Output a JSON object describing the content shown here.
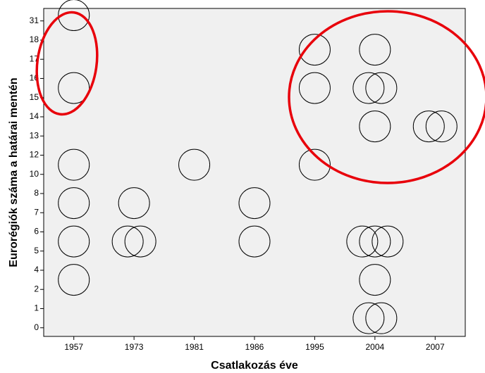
{
  "chart_data": {
    "type": "scatter",
    "x_label": "Csatlakozás éve",
    "y_label": "Eurorégiók száma a határai mentén",
    "categories": [
      "1957",
      "1973",
      "1981",
      "1986",
      "1995",
      "2004",
      "2007"
    ],
    "ylim": [
      -0.45,
      16.65
    ],
    "yticks": [
      0,
      1,
      {
        "value": 2,
        "label": "2"
      },
      {
        "value": 3,
        "label": "4"
      },
      {
        "value": 4,
        "label": "5"
      },
      {
        "value": 5,
        "label": "6"
      },
      {
        "value": 6,
        "label": "7"
      },
      {
        "value": 7,
        "label": "8"
      },
      {
        "value": 8,
        "label": "10"
      },
      {
        "value": 9,
        "label": "12"
      },
      {
        "value": 10,
        "label": "13"
      },
      {
        "value": 11,
        "label": "14"
      },
      {
        "value": 12,
        "label": "15"
      },
      {
        "value": 13,
        "label": "16"
      },
      {
        "value": 14,
        "label": "17"
      },
      {
        "value": 15,
        "label": "18"
      },
      {
        "value": 16,
        "label": "31"
      }
    ],
    "x": [
      "1957",
      "1957",
      "1957",
      "1957",
      "1957",
      "1957",
      "1973",
      "1973",
      "1973",
      "1981",
      "1986",
      "1986",
      "1995",
      "1995",
      "1995",
      "2004",
      "2004",
      "2004",
      "2004",
      "2004",
      "2004",
      "2004",
      "2004",
      "2004",
      "2004",
      "2007",
      "2007"
    ],
    "values": [
      16.3,
      12.5,
      8.5,
      6.5,
      4.5,
      2.5,
      6.5,
      4.5,
      4.5,
      8.5,
      6.5,
      4.5,
      14.5,
      12.5,
      8.5,
      14.5,
      12.5,
      12.5,
      10.5,
      4.5,
      4.5,
      4.5,
      2.5,
      0.5,
      0.5,
      10.5,
      10.5
    ],
    "color": "#000000"
  }
}
